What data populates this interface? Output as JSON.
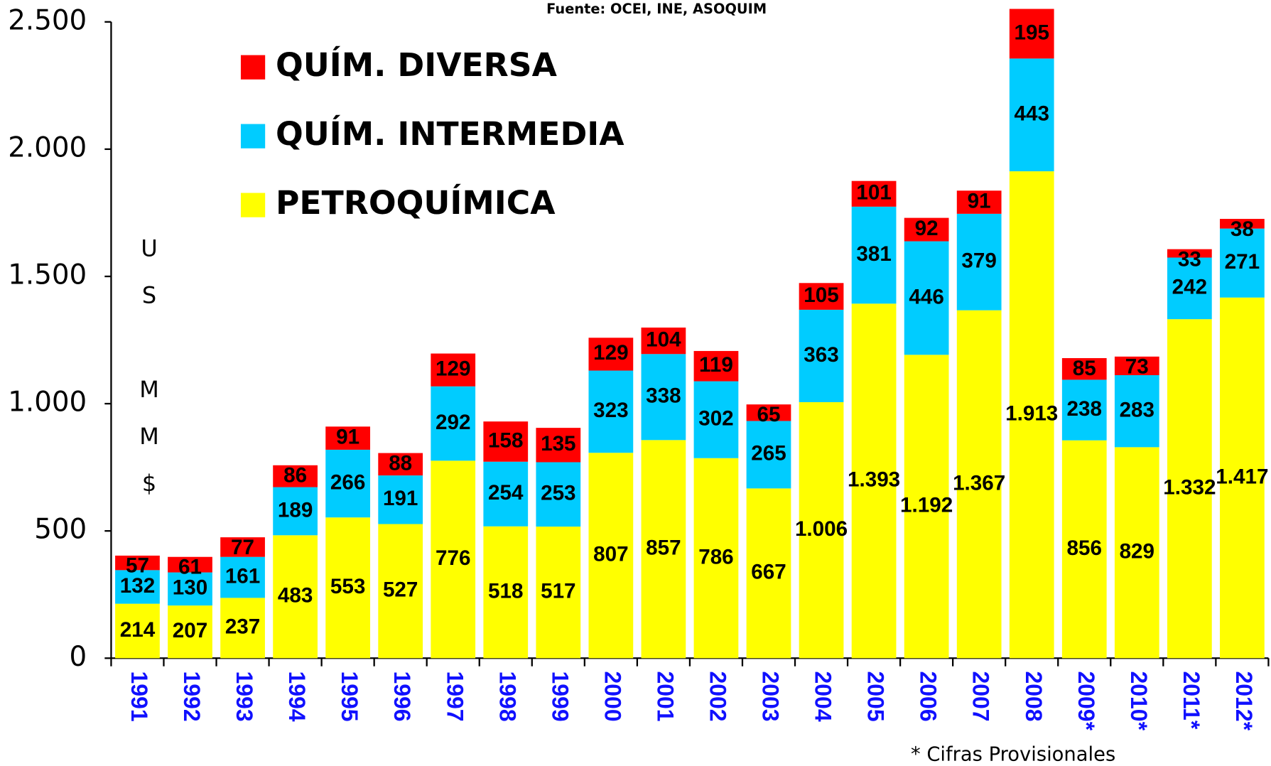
{
  "chart_data": {
    "type": "stacked_bar",
    "subtitle": "Fuente: OCEI, INE, ASOQUIM",
    "y_label": "US MM$",
    "footnote": "* Cifras Provisionales",
    "categories": [
      "1991",
      "1992",
      "1993",
      "1994",
      "1995",
      "1996",
      "1997",
      "1998",
      "1999",
      "2000",
      "2001",
      "2002",
      "2003",
      "2004",
      "2005",
      "2006",
      "2007",
      "2008",
      "2009*",
      "2010*",
      "2011*",
      "2012*"
    ],
    "series": [
      {
        "name": "PETROQUÍMICA",
        "color": "#ffff00",
        "values": [
          214,
          207,
          237,
          483,
          553,
          527,
          776,
          518,
          517,
          807,
          857,
          786,
          667,
          1006,
          1393,
          1192,
          1367,
          1913,
          856,
          829,
          1332,
          1417
        ],
        "value_labels": [
          "214",
          "207",
          "237",
          "483",
          "553",
          "527",
          "776",
          "518",
          "517",
          "807",
          "857",
          "786",
          "667",
          "1.006",
          "1.393",
          "1.192",
          "1.367",
          "1.913",
          "856",
          "829",
          "1.332",
          "1.417"
        ]
      },
      {
        "name": "QUÍM. INTERMEDIA",
        "color": "#00ccff",
        "values": [
          132,
          130,
          161,
          189,
          266,
          191,
          292,
          254,
          253,
          323,
          338,
          302,
          265,
          363,
          381,
          446,
          379,
          443,
          238,
          283,
          242,
          271
        ]
      },
      {
        "name": "QUÍM. DIVERSA",
        "color": "#ff0000",
        "values": [
          57,
          61,
          77,
          86,
          91,
          88,
          129,
          158,
          135,
          129,
          104,
          119,
          65,
          105,
          101,
          92,
          91,
          195,
          85,
          73,
          33,
          38
        ]
      }
    ],
    "ylim": [
      0,
      2500
    ],
    "yticks": [
      0,
      500,
      {
        "value": 1000,
        "label": "1.000"
      },
      {
        "value": 1500,
        "label": "1.500"
      },
      {
        "value": 2000,
        "label": "2.000"
      },
      {
        "value": 2500,
        "label": "2.500"
      }
    ],
    "legend": "upper left"
  }
}
